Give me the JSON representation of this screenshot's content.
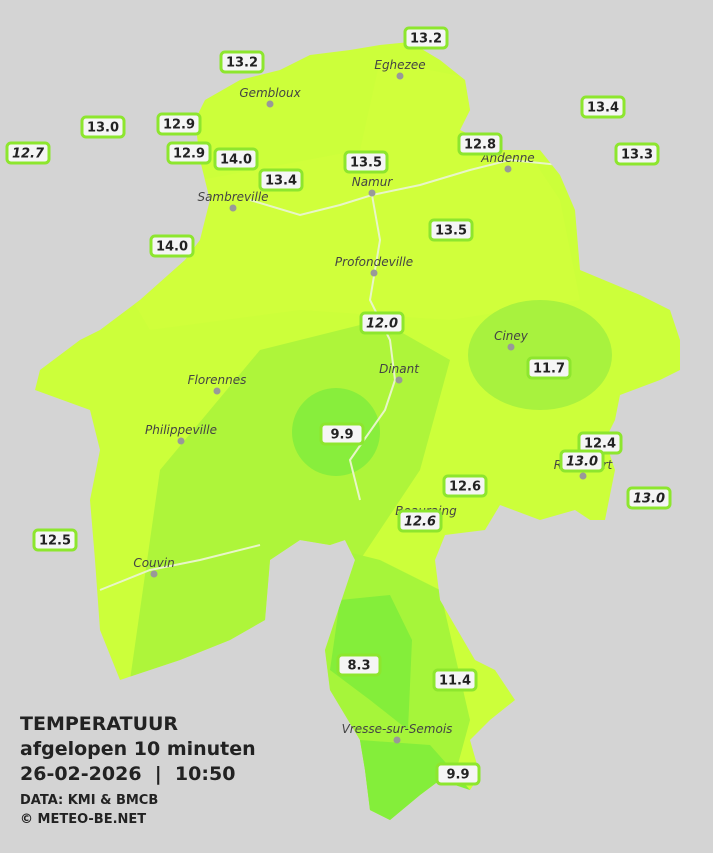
{
  "cities": [
    "Eghezee",
    "Gembloux",
    "Andenne",
    "Namur",
    "Sambreville",
    "Profondeville",
    "Ciney",
    "Florennes",
    "Dinant",
    "Philippeville",
    "Rochefort",
    "Beauraing",
    "Couvin",
    "Vresse-sur-Semois"
  ],
  "stations": [
    {
      "label": "13.2"
    },
    {
      "label": "13.2"
    },
    {
      "label": "13.4"
    },
    {
      "label": "13.0"
    },
    {
      "label": "12.9"
    },
    {
      "label": "12.7",
      "italic": true
    },
    {
      "label": "12.8"
    },
    {
      "label": "13.3"
    },
    {
      "label": "12.9"
    },
    {
      "label": "14.0"
    },
    {
      "label": "13.5"
    },
    {
      "label": "13.4"
    },
    {
      "label": "13.5"
    },
    {
      "label": "14.0"
    },
    {
      "label": "12.0",
      "italic": true
    },
    {
      "label": "11.7"
    },
    {
      "label": "9.9"
    },
    {
      "label": "12.4"
    },
    {
      "label": "13.0",
      "italic": true
    },
    {
      "label": "12.6"
    },
    {
      "label": "13.0",
      "italic": true
    },
    {
      "label": "12.6",
      "italic": true
    },
    {
      "label": "12.5"
    },
    {
      "label": "8.3"
    },
    {
      "label": "11.4"
    },
    {
      "label": "9.9"
    }
  ],
  "info": {
    "title": "TEMPERATUUR",
    "subtitle": "afgelopen 10 minuten",
    "datetime": "26-02-2026  |  10:50",
    "source": "DATA: KMI & BMCB",
    "copyright": "© METEO-BE.NET"
  }
}
